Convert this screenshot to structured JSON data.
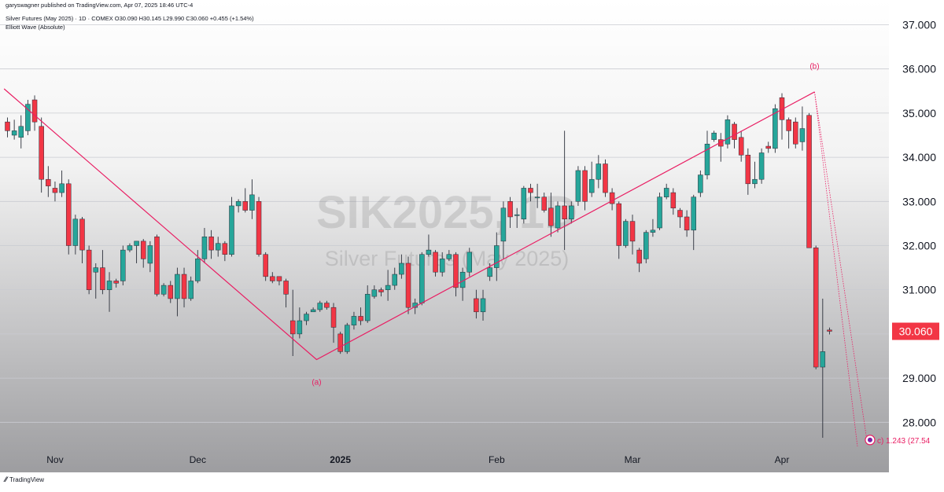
{
  "header": {
    "publish_line": "garyswagner published on TradingView.com, Apr 07, 2025 18:46 UTC-4",
    "symbol_line": "Silver Futures (May 2025) · 1D · COMEX  O30.090  H30.145  L29.990  C30.060  +0.455 (+1.54%)",
    "indicator_line": "Elliott Wave (Absolute)"
  },
  "watermark": {
    "ticker": "SIK2025, 1D",
    "name": "Silver Futures (May 2025)"
  },
  "footer": {
    "logo_text": "TradingView"
  },
  "colors": {
    "up": "#26a69a",
    "down": "#f23645",
    "wave": "#e91e63",
    "price_tag": "#f23645"
  },
  "chart_data": {
    "type": "candlestick",
    "symbol": "SIK2025",
    "interval": "1D",
    "y_axis": {
      "min": 27.25,
      "max": 37.25,
      "ticks": [
        "28.000",
        "29.000",
        "30.000",
        "31.000",
        "32.000",
        "33.000",
        "34.000",
        "35.000",
        "36.000",
        "37.000"
      ]
    },
    "x_axis_labels": [
      {
        "label": "Nov",
        "bar": 7,
        "bold": false
      },
      {
        "label": "Dec",
        "bar": 28,
        "bold": false
      },
      {
        "label": "2025",
        "bar": 49,
        "bold": true
      },
      {
        "label": "Feb",
        "bar": 72,
        "bold": false
      },
      {
        "label": "Mar",
        "bar": 92,
        "bold": false
      },
      {
        "label": "Apr",
        "bar": 114,
        "bold": false
      }
    ],
    "last_price": "30.060",
    "candles": [
      [
        34.8,
        34.6,
        34.45,
        34.9
      ],
      [
        34.5,
        34.6,
        34.4,
        34.85
      ],
      [
        34.45,
        34.7,
        34.2,
        34.95
      ],
      [
        34.6,
        35.2,
        34.5,
        35.3
      ],
      [
        35.3,
        34.8,
        34.6,
        35.4
      ],
      [
        34.7,
        33.5,
        33.2,
        34.9
      ],
      [
        33.5,
        33.35,
        33.1,
        33.8
      ],
      [
        33.3,
        33.2,
        33.0,
        33.45
      ],
      [
        33.2,
        33.4,
        33.1,
        33.7
      ],
      [
        33.4,
        32.0,
        31.8,
        33.5
      ],
      [
        32.0,
        32.6,
        31.8,
        32.7
      ],
      [
        32.6,
        31.9,
        31.6,
        32.65
      ],
      [
        31.9,
        31.0,
        30.9,
        32.0
      ],
      [
        31.4,
        31.5,
        30.8,
        31.6
      ],
      [
        31.5,
        31.0,
        30.9,
        31.9
      ],
      [
        31.0,
        31.2,
        30.5,
        31.4
      ],
      [
        31.2,
        31.15,
        31.05,
        31.25
      ],
      [
        31.2,
        31.9,
        31.1,
        32.0
      ],
      [
        31.9,
        32.0,
        31.85,
        32.05
      ],
      [
        32.0,
        32.1,
        31.6,
        32.1
      ],
      [
        32.1,
        31.7,
        31.5,
        32.15
      ],
      [
        31.6,
        32.0,
        31.4,
        32.1
      ],
      [
        32.2,
        30.9,
        30.85,
        32.25
      ],
      [
        30.9,
        31.1,
        30.85,
        31.15
      ],
      [
        31.1,
        30.8,
        30.7,
        31.2
      ],
      [
        30.8,
        31.35,
        30.4,
        31.5
      ],
      [
        31.35,
        30.8,
        30.6,
        31.5
      ],
      [
        30.8,
        31.2,
        30.75,
        31.3
      ],
      [
        31.2,
        31.7,
        31.15,
        31.9
      ],
      [
        31.7,
        32.2,
        31.6,
        32.4
      ],
      [
        32.2,
        31.9,
        31.7,
        32.35
      ],
      [
        31.9,
        32.05,
        31.75,
        32.2
      ],
      [
        32.05,
        31.8,
        31.65,
        32.1
      ],
      [
        31.8,
        32.9,
        31.75,
        33.1
      ],
      [
        32.9,
        33.0,
        32.75,
        33.05
      ],
      [
        33.0,
        32.8,
        32.75,
        33.3
      ],
      [
        32.8,
        33.15,
        32.6,
        33.5
      ],
      [
        33.0,
        31.8,
        31.75,
        33.1
      ],
      [
        31.8,
        31.3,
        31.2,
        31.85
      ],
      [
        31.3,
        31.2,
        31.15,
        31.4
      ],
      [
        31.3,
        31.2,
        31.1,
        31.3
      ],
      [
        31.2,
        30.9,
        30.6,
        31.25
      ],
      [
        30.3,
        30.0,
        29.5,
        31.0
      ],
      [
        30.0,
        30.3,
        29.9,
        30.6
      ],
      [
        30.3,
        30.45,
        30.2,
        30.5
      ],
      [
        30.5,
        30.55,
        30.5,
        30.6
      ],
      [
        30.55,
        30.7,
        30.5,
        30.75
      ],
      [
        30.7,
        30.6,
        30.55,
        30.75
      ],
      [
        30.6,
        30.15,
        29.8,
        30.7
      ],
      [
        30.0,
        29.6,
        29.55,
        30.05
      ],
      [
        29.6,
        30.2,
        29.55,
        30.25
      ],
      [
        30.2,
        30.4,
        30.1,
        30.5
      ],
      [
        30.4,
        30.3,
        30.2,
        30.6
      ],
      [
        30.3,
        30.9,
        30.25,
        31.1
      ],
      [
        30.85,
        31.0,
        30.8,
        31.1
      ],
      [
        31.0,
        30.95,
        30.85,
        31.05
      ],
      [
        31.0,
        31.1,
        30.75,
        31.45
      ],
      [
        31.1,
        31.35,
        31.0,
        31.5
      ],
      [
        31.35,
        31.6,
        31.25,
        31.8
      ],
      [
        31.6,
        30.6,
        30.45,
        31.75
      ],
      [
        30.6,
        30.7,
        30.45,
        30.8
      ],
      [
        30.7,
        31.8,
        30.65,
        31.85
      ],
      [
        31.8,
        31.9,
        31.75,
        32.25
      ],
      [
        31.85,
        31.4,
        31.3,
        31.9
      ],
      [
        31.4,
        31.7,
        31.3,
        31.85
      ],
      [
        31.7,
        31.8,
        31.65,
        31.9
      ],
      [
        31.8,
        31.05,
        30.85,
        31.85
      ],
      [
        31.05,
        31.4,
        30.75,
        31.5
      ],
      [
        31.4,
        31.85,
        31.3,
        31.95
      ],
      [
        30.8,
        30.5,
        30.35,
        31.0
      ],
      [
        30.5,
        30.8,
        30.3,
        31.0
      ],
      [
        31.3,
        31.5,
        31.2,
        31.6
      ],
      [
        31.5,
        32.0,
        31.2,
        32.3
      ],
      [
        32.1,
        32.85,
        31.7,
        33.0
      ],
      [
        33.0,
        32.65,
        32.4,
        33.1
      ],
      [
        32.7,
        32.7,
        32.4,
        32.85
      ],
      [
        32.6,
        33.3,
        32.5,
        33.35
      ],
      [
        33.3,
        33.2,
        33.0,
        33.4
      ],
      [
        33.1,
        33.1,
        32.85,
        33.4
      ],
      [
        33.1,
        32.8,
        32.75,
        33.2
      ],
      [
        32.85,
        32.45,
        32.2,
        33.2
      ],
      [
        32.4,
        32.9,
        32.3,
        33.0
      ],
      [
        32.9,
        32.6,
        31.9,
        34.6
      ],
      [
        32.6,
        32.9,
        32.5,
        33.0
      ],
      [
        33.0,
        33.7,
        32.9,
        33.8
      ],
      [
        33.7,
        33.0,
        32.8,
        33.8
      ],
      [
        33.2,
        33.5,
        33.1,
        33.9
      ],
      [
        33.5,
        33.85,
        33.3,
        34.05
      ],
      [
        33.85,
        33.2,
        33.1,
        33.95
      ],
      [
        33.2,
        32.95,
        32.8,
        33.3
      ],
      [
        32.95,
        32.0,
        31.7,
        33.0
      ],
      [
        32.0,
        32.55,
        31.95,
        32.6
      ],
      [
        32.55,
        32.1,
        31.8,
        32.7
      ],
      [
        31.9,
        31.6,
        31.4,
        31.95
      ],
      [
        31.7,
        32.3,
        31.6,
        32.35
      ],
      [
        32.3,
        32.35,
        32.2,
        32.6
      ],
      [
        32.4,
        33.1,
        32.35,
        33.2
      ],
      [
        33.1,
        33.3,
        33.05,
        33.4
      ],
      [
        33.2,
        32.85,
        32.7,
        33.3
      ],
      [
        32.8,
        32.65,
        32.4,
        32.85
      ],
      [
        32.65,
        32.35,
        32.2,
        32.8
      ],
      [
        32.35,
        33.1,
        31.9,
        33.15
      ],
      [
        33.2,
        33.6,
        33.1,
        33.7
      ],
      [
        33.6,
        34.3,
        33.5,
        34.6
      ],
      [
        34.4,
        34.55,
        34.35,
        34.6
      ],
      [
        34.4,
        34.25,
        33.9,
        34.55
      ],
      [
        34.3,
        34.85,
        34.2,
        34.95
      ],
      [
        34.75,
        34.4,
        34.2,
        34.8
      ],
      [
        34.45,
        34.05,
        33.9,
        34.6
      ],
      [
        34.05,
        33.4,
        33.15,
        34.2
      ],
      [
        33.4,
        33.5,
        33.3,
        33.9
      ],
      [
        33.5,
        34.1,
        33.4,
        34.2
      ],
      [
        34.25,
        34.2,
        34.1,
        34.35
      ],
      [
        34.2,
        35.1,
        34.1,
        35.2
      ],
      [
        35.35,
        34.85,
        34.4,
        35.45
      ],
      [
        34.85,
        34.6,
        34.2,
        34.9
      ],
      [
        34.8,
        34.3,
        34.2,
        34.9
      ],
      [
        34.35,
        34.65,
        34.15,
        35.15
      ],
      [
        34.95,
        31.95,
        31.95,
        35.0
      ],
      [
        31.95,
        29.25,
        29.2,
        32.0
      ],
      [
        29.25,
        29.6,
        27.65,
        30.8
      ],
      [
        30.09,
        30.06,
        29.99,
        30.145
      ]
    ],
    "elliott_wave": {
      "points": [
        {
          "bar": -0.5,
          "price": 35.55
        },
        {
          "bar": 45.5,
          "price": 29.42
        },
        {
          "bar": 118.8,
          "price": 35.48
        },
        {
          "bar": 126.5,
          "price": 27.6
        }
      ],
      "labels": [
        {
          "text": "(a)",
          "bar": 45.5,
          "price": 28.85
        },
        {
          "text": "(b)",
          "bar": 118.8,
          "price": 36.0
        }
      ],
      "target_label": "c) 1.243 (27.54"
    }
  }
}
